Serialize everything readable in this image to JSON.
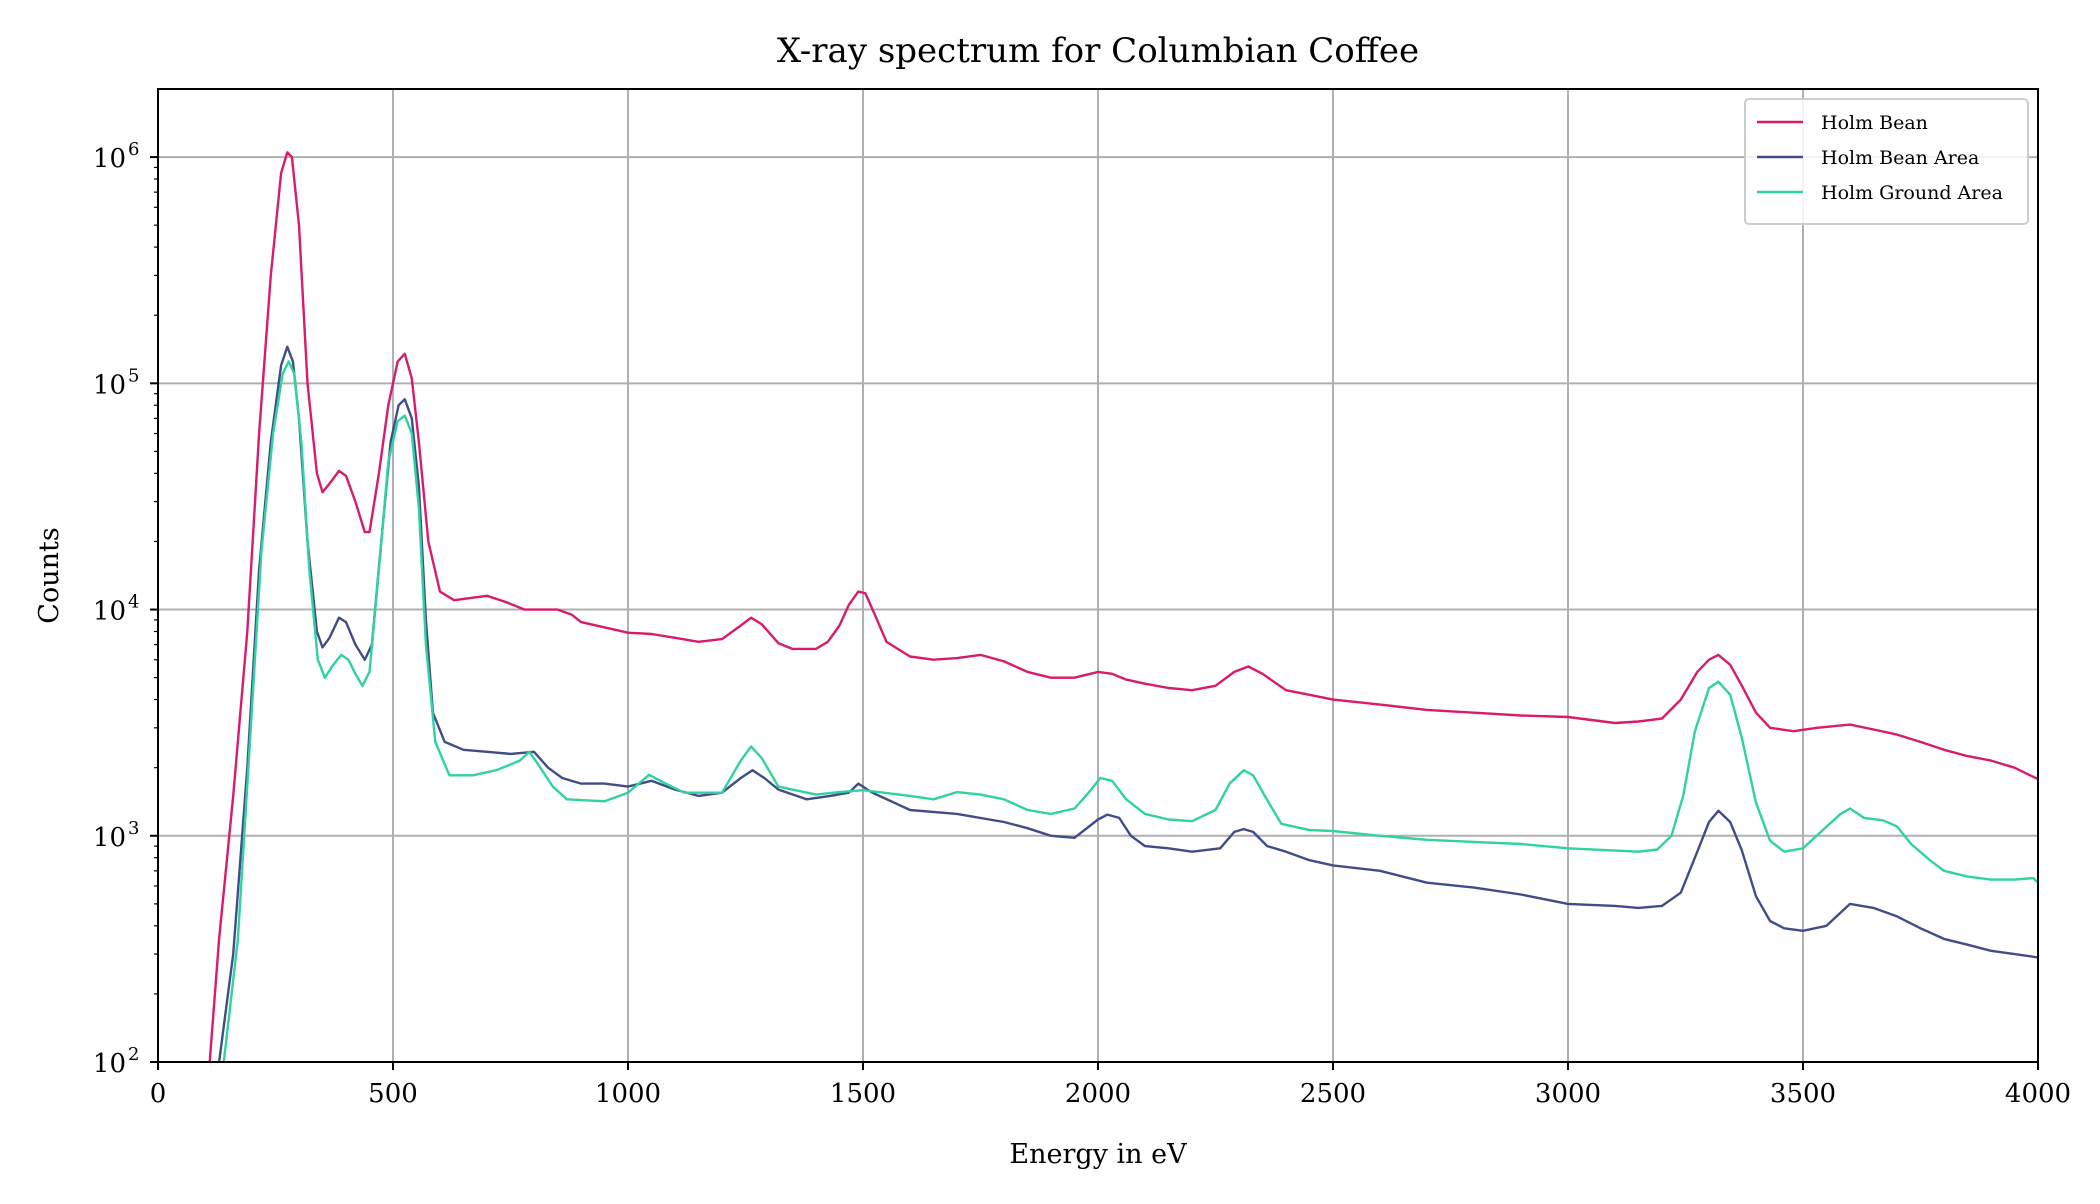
{
  "chart_data": {
    "type": "line",
    "title": "X-ray spectrum for Columbian Coffee",
    "xlabel": "Energy in eV",
    "ylabel": "Counts",
    "xlim": [
      0,
      4000
    ],
    "ylim": [
      100,
      2000000
    ],
    "yscale": "log",
    "grid": true,
    "legend_position": "top-right",
    "x_ticks": [
      {
        "value": 0,
        "label": "0"
      },
      {
        "value": 500,
        "label": "500"
      },
      {
        "value": 1000,
        "label": "1000"
      },
      {
        "value": 1500,
        "label": "1500"
      },
      {
        "value": 2000,
        "label": "2000"
      },
      {
        "value": 2500,
        "label": "2500"
      },
      {
        "value": 3000,
        "label": "3000"
      },
      {
        "value": 3500,
        "label": "3500"
      },
      {
        "value": 4000,
        "label": "4000"
      }
    ],
    "y_ticks": [
      {
        "value": 100,
        "base": "10",
        "exp": "2"
      },
      {
        "value": 1000,
        "base": "10",
        "exp": "3"
      },
      {
        "value": 10000,
        "base": "10",
        "exp": "4"
      },
      {
        "value": 100000,
        "base": "10",
        "exp": "5"
      },
      {
        "value": 1000000,
        "base": "10",
        "exp": "6"
      }
    ],
    "series": [
      {
        "name": "Holm Bean",
        "color": "#d81b6a",
        "points": [
          [
            110,
            100
          ],
          [
            130,
            350
          ],
          [
            160,
            1500
          ],
          [
            190,
            8000
          ],
          [
            215,
            60000
          ],
          [
            240,
            300000
          ],
          [
            262,
            850000
          ],
          [
            275,
            1050000
          ],
          [
            285,
            1000000
          ],
          [
            300,
            500000
          ],
          [
            318,
            100000
          ],
          [
            338,
            40000
          ],
          [
            350,
            33000
          ],
          [
            365,
            36000
          ],
          [
            385,
            41000
          ],
          [
            400,
            39000
          ],
          [
            420,
            30000
          ],
          [
            440,
            22000
          ],
          [
            450,
            22000
          ],
          [
            470,
            40000
          ],
          [
            490,
            80000
          ],
          [
            510,
            125000
          ],
          [
            525,
            135000
          ],
          [
            540,
            105000
          ],
          [
            555,
            55000
          ],
          [
            575,
            20000
          ],
          [
            600,
            12000
          ],
          [
            630,
            11000
          ],
          [
            700,
            11500
          ],
          [
            740,
            10800
          ],
          [
            780,
            10000
          ],
          [
            850,
            10000
          ],
          [
            880,
            9500
          ],
          [
            900,
            8800
          ],
          [
            1000,
            7900
          ],
          [
            1050,
            7800
          ],
          [
            1100,
            7500
          ],
          [
            1150,
            7200
          ],
          [
            1200,
            7400
          ],
          [
            1240,
            8500
          ],
          [
            1262,
            9200
          ],
          [
            1285,
            8600
          ],
          [
            1320,
            7100
          ],
          [
            1350,
            6700
          ],
          [
            1400,
            6700
          ],
          [
            1425,
            7200
          ],
          [
            1450,
            8500
          ],
          [
            1470,
            10500
          ],
          [
            1490,
            12000
          ],
          [
            1505,
            11800
          ],
          [
            1525,
            9500
          ],
          [
            1550,
            7200
          ],
          [
            1600,
            6200
          ],
          [
            1650,
            6000
          ],
          [
            1700,
            6100
          ],
          [
            1750,
            6300
          ],
          [
            1800,
            5900
          ],
          [
            1850,
            5300
          ],
          [
            1900,
            5000
          ],
          [
            1950,
            5000
          ],
          [
            2000,
            5300
          ],
          [
            2030,
            5200
          ],
          [
            2060,
            4900
          ],
          [
            2100,
            4700
          ],
          [
            2150,
            4500
          ],
          [
            2200,
            4400
          ],
          [
            2250,
            4600
          ],
          [
            2290,
            5300
          ],
          [
            2320,
            5600
          ],
          [
            2350,
            5200
          ],
          [
            2400,
            4400
          ],
          [
            2450,
            4200
          ],
          [
            2500,
            4000
          ],
          [
            2600,
            3800
          ],
          [
            2700,
            3600
          ],
          [
            2800,
            3500
          ],
          [
            2900,
            3400
          ],
          [
            3000,
            3350
          ],
          [
            3050,
            3250
          ],
          [
            3100,
            3150
          ],
          [
            3150,
            3200
          ],
          [
            3200,
            3300
          ],
          [
            3240,
            4000
          ],
          [
            3275,
            5300
          ],
          [
            3300,
            6000
          ],
          [
            3320,
            6300
          ],
          [
            3345,
            5700
          ],
          [
            3370,
            4600
          ],
          [
            3400,
            3500
          ],
          [
            3430,
            3000
          ],
          [
            3480,
            2900
          ],
          [
            3530,
            3000
          ],
          [
            3600,
            3100
          ],
          [
            3650,
            2950
          ],
          [
            3700,
            2800
          ],
          [
            3750,
            2600
          ],
          [
            3800,
            2400
          ],
          [
            3850,
            2250
          ],
          [
            3900,
            2150
          ],
          [
            3950,
            2000
          ],
          [
            4000,
            1780
          ]
        ]
      },
      {
        "name": "Holm Bean Area",
        "color": "#414d89",
        "points": [
          [
            130,
            100
          ],
          [
            160,
            300
          ],
          [
            190,
            2000
          ],
          [
            215,
            15000
          ],
          [
            240,
            55000
          ],
          [
            262,
            120000
          ],
          [
            275,
            145000
          ],
          [
            287,
            125000
          ],
          [
            300,
            70000
          ],
          [
            318,
            20000
          ],
          [
            338,
            8000
          ],
          [
            350,
            6800
          ],
          [
            365,
            7500
          ],
          [
            385,
            9200
          ],
          [
            400,
            8800
          ],
          [
            420,
            7000
          ],
          [
            440,
            6000
          ],
          [
            455,
            7000
          ],
          [
            475,
            20000
          ],
          [
            495,
            55000
          ],
          [
            512,
            80000
          ],
          [
            525,
            85000
          ],
          [
            540,
            70000
          ],
          [
            555,
            35000
          ],
          [
            570,
            9000
          ],
          [
            585,
            3500
          ],
          [
            610,
            2600
          ],
          [
            650,
            2400
          ],
          [
            700,
            2350
          ],
          [
            750,
            2300
          ],
          [
            800,
            2350
          ],
          [
            830,
            2000
          ],
          [
            860,
            1800
          ],
          [
            900,
            1700
          ],
          [
            950,
            1700
          ],
          [
            1000,
            1650
          ],
          [
            1050,
            1750
          ],
          [
            1100,
            1600
          ],
          [
            1150,
            1500
          ],
          [
            1200,
            1550
          ],
          [
            1240,
            1800
          ],
          [
            1265,
            1950
          ],
          [
            1290,
            1800
          ],
          [
            1320,
            1600
          ],
          [
            1380,
            1450
          ],
          [
            1430,
            1500
          ],
          [
            1470,
            1550
          ],
          [
            1490,
            1700
          ],
          [
            1520,
            1550
          ],
          [
            1560,
            1420
          ],
          [
            1600,
            1300
          ],
          [
            1700,
            1250
          ],
          [
            1800,
            1150
          ],
          [
            1850,
            1080
          ],
          [
            1900,
            1000
          ],
          [
            1950,
            980
          ],
          [
            2000,
            1180
          ],
          [
            2020,
            1240
          ],
          [
            2045,
            1200
          ],
          [
            2070,
            1000
          ],
          [
            2100,
            900
          ],
          [
            2150,
            880
          ],
          [
            2200,
            850
          ],
          [
            2260,
            880
          ],
          [
            2290,
            1040
          ],
          [
            2310,
            1070
          ],
          [
            2330,
            1040
          ],
          [
            2360,
            900
          ],
          [
            2400,
            850
          ],
          [
            2450,
            780
          ],
          [
            2500,
            740
          ],
          [
            2600,
            700
          ],
          [
            2700,
            620
          ],
          [
            2800,
            590
          ],
          [
            2900,
            550
          ],
          [
            3000,
            500
          ],
          [
            3100,
            490
          ],
          [
            3150,
            480
          ],
          [
            3200,
            490
          ],
          [
            3240,
            560
          ],
          [
            3275,
            850
          ],
          [
            3300,
            1150
          ],
          [
            3320,
            1290
          ],
          [
            3345,
            1150
          ],
          [
            3370,
            860
          ],
          [
            3400,
            540
          ],
          [
            3430,
            420
          ],
          [
            3460,
            390
          ],
          [
            3500,
            380
          ],
          [
            3550,
            400
          ],
          [
            3600,
            500
          ],
          [
            3650,
            480
          ],
          [
            3700,
            440
          ],
          [
            3750,
            390
          ],
          [
            3800,
            350
          ],
          [
            3850,
            330
          ],
          [
            3900,
            310
          ],
          [
            3950,
            300
          ],
          [
            4000,
            290
          ]
        ]
      },
      {
        "name": "Holm Ground Area",
        "color": "#2ed3a0",
        "points": [
          [
            140,
            100
          ],
          [
            170,
            350
          ],
          [
            195,
            2500
          ],
          [
            220,
            18000
          ],
          [
            245,
            60000
          ],
          [
            265,
            110000
          ],
          [
            278,
            125000
          ],
          [
            290,
            110000
          ],
          [
            305,
            55000
          ],
          [
            322,
            15000
          ],
          [
            340,
            6000
          ],
          [
            355,
            5000
          ],
          [
            370,
            5600
          ],
          [
            390,
            6300
          ],
          [
            405,
            6000
          ],
          [
            420,
            5200
          ],
          [
            435,
            4600
          ],
          [
            450,
            5300
          ],
          [
            470,
            15000
          ],
          [
            490,
            45000
          ],
          [
            510,
            68000
          ],
          [
            525,
            72000
          ],
          [
            540,
            60000
          ],
          [
            555,
            28000
          ],
          [
            570,
            7000
          ],
          [
            590,
            2600
          ],
          [
            620,
            1850
          ],
          [
            670,
            1850
          ],
          [
            720,
            1950
          ],
          [
            770,
            2150
          ],
          [
            790,
            2350
          ],
          [
            810,
            2050
          ],
          [
            840,
            1650
          ],
          [
            870,
            1450
          ],
          [
            950,
            1420
          ],
          [
            1000,
            1550
          ],
          [
            1045,
            1860
          ],
          [
            1080,
            1700
          ],
          [
            1120,
            1550
          ],
          [
            1200,
            1550
          ],
          [
            1240,
            2150
          ],
          [
            1262,
            2480
          ],
          [
            1285,
            2200
          ],
          [
            1320,
            1650
          ],
          [
            1400,
            1520
          ],
          [
            1450,
            1560
          ],
          [
            1500,
            1590
          ],
          [
            1600,
            1500
          ],
          [
            1650,
            1450
          ],
          [
            1700,
            1560
          ],
          [
            1750,
            1520
          ],
          [
            1800,
            1450
          ],
          [
            1850,
            1300
          ],
          [
            1900,
            1250
          ],
          [
            1950,
            1320
          ],
          [
            1980,
            1550
          ],
          [
            2005,
            1800
          ],
          [
            2030,
            1750
          ],
          [
            2060,
            1450
          ],
          [
            2100,
            1250
          ],
          [
            2150,
            1180
          ],
          [
            2200,
            1160
          ],
          [
            2250,
            1300
          ],
          [
            2280,
            1700
          ],
          [
            2310,
            1950
          ],
          [
            2330,
            1850
          ],
          [
            2355,
            1500
          ],
          [
            2390,
            1130
          ],
          [
            2450,
            1060
          ],
          [
            2500,
            1050
          ],
          [
            2600,
            1000
          ],
          [
            2700,
            960
          ],
          [
            2800,
            940
          ],
          [
            2900,
            920
          ],
          [
            3000,
            880
          ],
          [
            3100,
            860
          ],
          [
            3150,
            850
          ],
          [
            3190,
            870
          ],
          [
            3220,
            1000
          ],
          [
            3245,
            1500
          ],
          [
            3270,
            2900
          ],
          [
            3300,
            4500
          ],
          [
            3320,
            4800
          ],
          [
            3345,
            4200
          ],
          [
            3370,
            2700
          ],
          [
            3400,
            1400
          ],
          [
            3430,
            950
          ],
          [
            3460,
            850
          ],
          [
            3500,
            880
          ],
          [
            3540,
            1050
          ],
          [
            3580,
            1250
          ],
          [
            3600,
            1320
          ],
          [
            3630,
            1200
          ],
          [
            3670,
            1170
          ],
          [
            3700,
            1100
          ],
          [
            3730,
            920
          ],
          [
            3770,
            780
          ],
          [
            3800,
            700
          ],
          [
            3850,
            660
          ],
          [
            3900,
            640
          ],
          [
            3950,
            640
          ],
          [
            3990,
            650
          ],
          [
            4000,
            620
          ]
        ]
      }
    ]
  }
}
